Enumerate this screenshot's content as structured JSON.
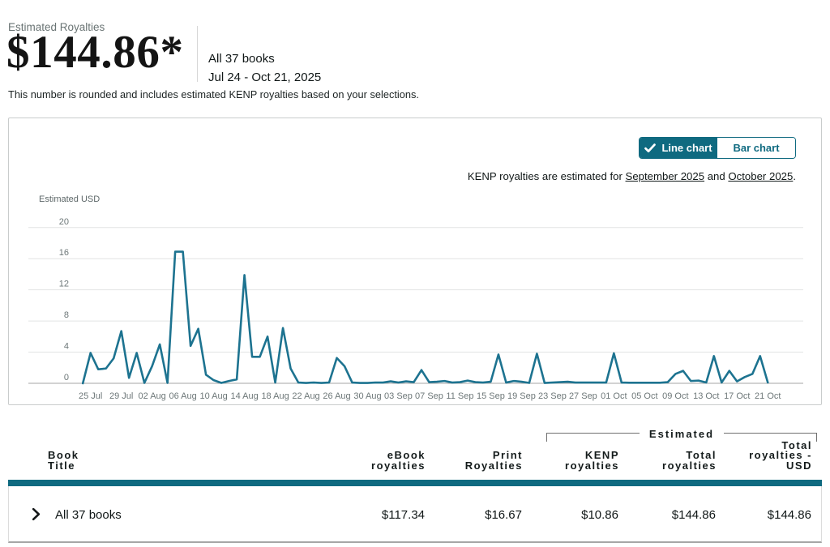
{
  "colors": {
    "teal": "#0f6a80",
    "line": "#1d7390",
    "grid": "#e2e4e4",
    "grid_zero": "#a6a6a6",
    "axis_text": "#6d7778"
  },
  "summary": {
    "label": "Estimated Royalties",
    "amount": "$144.86*",
    "scope": "All 37 books",
    "date_range": "Jul 24 - Oct 21, 2025",
    "note": "This number is rounded and includes estimated KENP royalties based on your selections."
  },
  "chart_card": {
    "toggle": {
      "line_label": "Line chart",
      "bar_label": "Bar chart",
      "active": "line"
    },
    "kenp_note": {
      "prefix": "KENP royalties are estimated for ",
      "month1": "September 2025",
      "conjunction": " and ",
      "month2": "October 2025",
      "suffix": "."
    }
  },
  "chart_data": {
    "type": "line",
    "title": "",
    "ylabel": "Estimated USD",
    "xlabel": "",
    "x_start_date": "2025-07-24",
    "x_end_date": "2025-10-21",
    "x_tick_labels": [
      "25 Jul",
      "29 Jul",
      "02 Aug",
      "06 Aug",
      "10 Aug",
      "14 Aug",
      "18 Aug",
      "22 Aug",
      "26 Aug",
      "30 Aug",
      "03 Sep",
      "07 Sep",
      "11 Sep",
      "15 Sep",
      "19 Sep",
      "23 Sep",
      "27 Sep",
      "01 Oct",
      "05 Oct",
      "09 Oct",
      "13 Oct",
      "17 Oct",
      "21 Oct"
    ],
    "x_tick_first_day": 1,
    "x_tick_step": 4,
    "y_ticks": [
      0,
      4,
      8,
      12,
      16,
      20
    ],
    "ylim": [
      0,
      20
    ],
    "grid": true,
    "legend": "none",
    "values": [
      0,
      3.9,
      1.8,
      1.9,
      3.2,
      6.7,
      0.7,
      3.9,
      0.05,
      2.2,
      5.0,
      0.05,
      16.9,
      16.9,
      4.8,
      7.0,
      1.1,
      0.4,
      0.05,
      0.3,
      0.5,
      13.9,
      3.4,
      3.4,
      6.0,
      0.1,
      7.1,
      1.9,
      0.1,
      0.05,
      0.1,
      0.05,
      0.1,
      3.25,
      2.2,
      0.1,
      0.05,
      0.05,
      0.1,
      0.1,
      0.25,
      0.1,
      0.25,
      0.15,
      1.7,
      0.15,
      0.2,
      0.3,
      0.1,
      0.15,
      0.35,
      0.15,
      0.1,
      0.2,
      3.7,
      0.1,
      0.3,
      0.2,
      0.05,
      3.8,
      0.05,
      0.1,
      0.15,
      0.2,
      0.1,
      0.1,
      0.1,
      0.1,
      0.1,
      3.85,
      0.1,
      0.07,
      0.07,
      0.07,
      0.07,
      0.07,
      0.15,
      1.2,
      1.6,
      0.3,
      0.35,
      0.1,
      3.5,
      0.1,
      1.6,
      0.25,
      0.8,
      1.2,
      3.5,
      0.1
    ]
  },
  "table": {
    "estimated_group_label": "Estimated",
    "columns": {
      "book": {
        "lines": [
          "Book",
          "Title"
        ]
      },
      "ebook": {
        "lines": [
          "eBook",
          "royalties"
        ]
      },
      "print": {
        "lines": [
          "Print",
          "Royalties"
        ]
      },
      "kenp": {
        "lines": [
          "KENP",
          "royalties"
        ]
      },
      "total": {
        "lines": [
          "Total",
          "royalties"
        ]
      },
      "total_usd": {
        "lines": [
          "Total",
          "royalties -",
          "USD"
        ]
      }
    },
    "rows": [
      {
        "title": "All 37 books",
        "ebook": "$117.34",
        "print": "$16.67",
        "kenp": "$10.86",
        "total": "$144.86",
        "total_usd": "$144.86"
      }
    ]
  }
}
